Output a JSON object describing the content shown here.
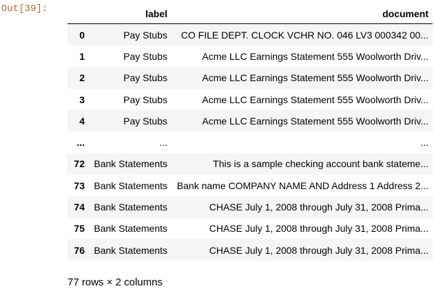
{
  "prompt": "Out[39]:",
  "table": {
    "columns": [
      "",
      "label",
      "document"
    ],
    "rows": [
      {
        "index": "0",
        "label": "Pay Stubs",
        "document": "CO FILE DEPT. CLOCK VCHR NO. 046 LV3 000342 00..."
      },
      {
        "index": "1",
        "label": "Pay Stubs",
        "document": "Acme LLC Earnings Statement 555 Woolworth Driv..."
      },
      {
        "index": "2",
        "label": "Pay Stubs",
        "document": "Acme LLC Earnings Statement 555 Woolworth Driv..."
      },
      {
        "index": "3",
        "label": "Pay Stubs",
        "document": "Acme LLC Earnings Statement 555 Woolworth Driv..."
      },
      {
        "index": "4",
        "label": "Pay Stubs",
        "document": "Acme LLC Earnings Statement 555 Woolworth Driv..."
      },
      {
        "index": "...",
        "label": "...",
        "document": "..."
      },
      {
        "index": "72",
        "label": "Bank Statements",
        "document": "This is a sample checking account bank stateme..."
      },
      {
        "index": "73",
        "label": "Bank Statements",
        "document": "Bank name COMPANY NAME AND Address 1 Address 2..."
      },
      {
        "index": "74",
        "label": "Bank Statements",
        "document": "CHASE July 1, 2008 through July 31, 2008 Prima..."
      },
      {
        "index": "75",
        "label": "Bank Statements",
        "document": "CHASE July 1, 2008 through July 31, 2008 Prima..."
      },
      {
        "index": "76",
        "label": "Bank Statements",
        "document": "CHASE July 1, 2008 through July 31, 2008 Prima..."
      }
    ]
  },
  "summary": "77 rows × 2 columns"
}
